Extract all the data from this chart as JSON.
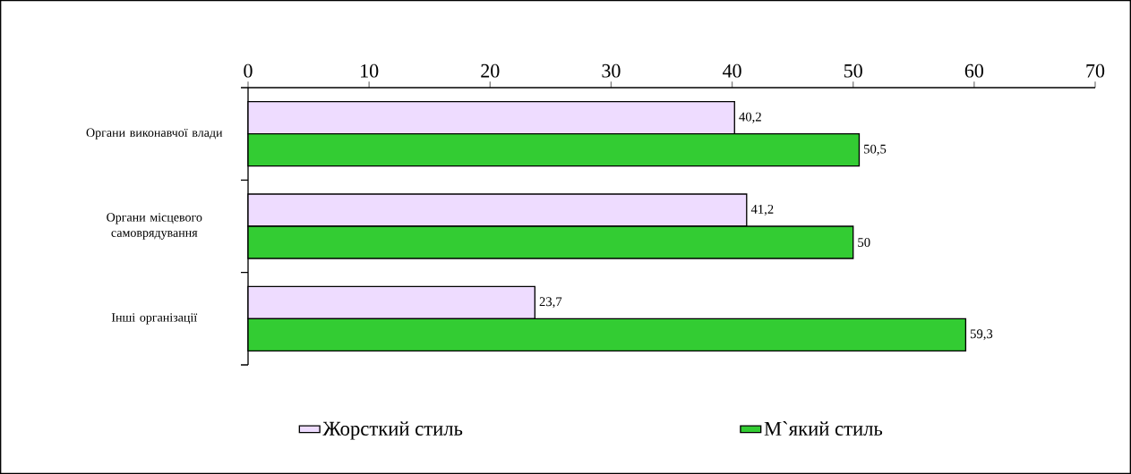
{
  "chart_data": {
    "type": "bar",
    "orientation": "horizontal",
    "categories": [
      "Органи виконавчої влади",
      "Органи місцевого самоврядування",
      "Інші організації"
    ],
    "series": [
      {
        "name": "Жорсткий стиль",
        "color": "#eedcff",
        "values": [
          40.2,
          41.2,
          23.7
        ],
        "value_labels": [
          "40,2",
          "41,2",
          "23,7"
        ]
      },
      {
        "name": "М`який стиль",
        "color": "#33cc33",
        "values": [
          50.5,
          50,
          59.3
        ],
        "value_labels": [
          "50,5",
          "50",
          "59,3"
        ]
      }
    ],
    "xlim": [
      0,
      70
    ],
    "xticks": [
      0,
      10,
      20,
      30,
      40,
      50,
      60,
      70
    ],
    "legend": "bottom"
  }
}
